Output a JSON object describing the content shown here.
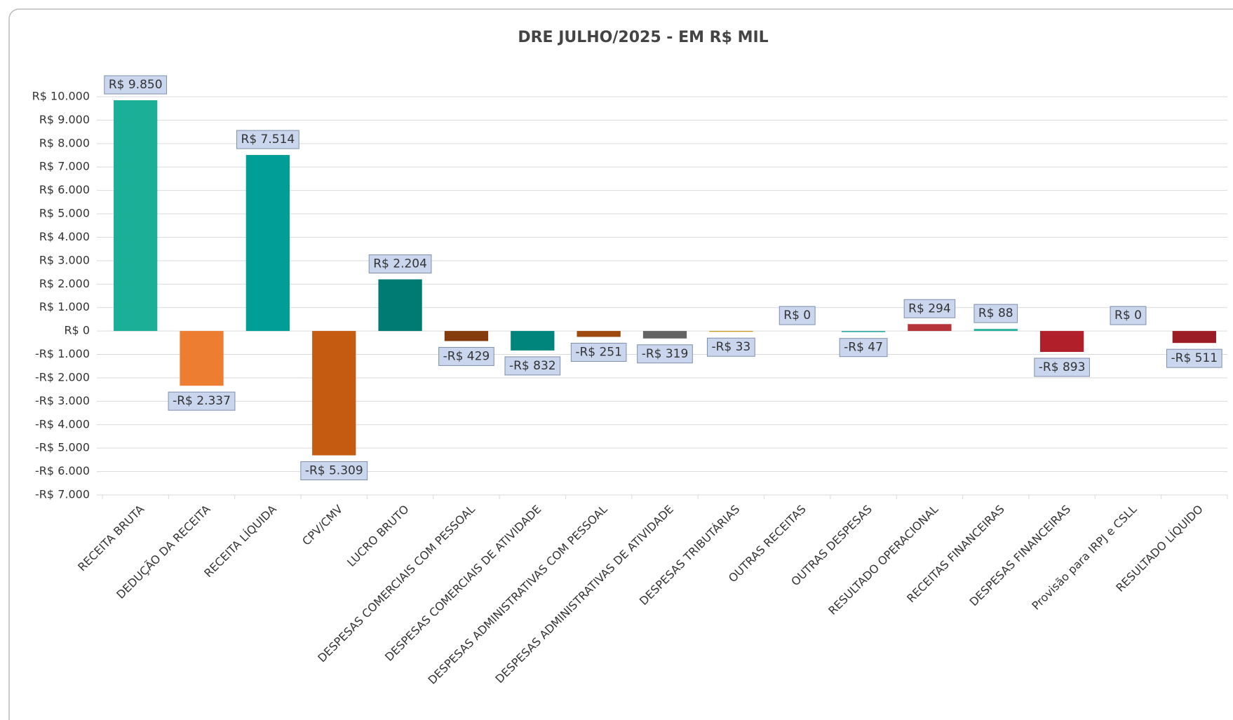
{
  "chart_data": {
    "type": "bar",
    "title": "DRE JULHO/2025 - EM R$ MIL",
    "categories": [
      "RECEITA BRUTA",
      "DEDUÇÃO DA RECEITA",
      "RECEITA LÍQUIDA",
      "CPV/CMV",
      "LUCRO BRUTO",
      "DESPESAS COMERCIAIS COM PESSOAL",
      "DESPESAS COMERCIAIS DE ATIVIDADE",
      "DESPESAS ADMINISTRATIVAS COM PESSOAL",
      "DESPESAS ADMINISTRATIVAS DE ATIVIDADE",
      "DESPESAS TRIBUTÁRIAS",
      "OUTRAS RECEITAS",
      "OUTRAS DESPESAS",
      "RESULTADO OPERACIONAL",
      "RECEITAS FINANCEIRAS",
      "DESPESAS FINANCEIRAS",
      "Provisão para IRPJ e CSLL",
      "RESULTADO LÍQUIDO"
    ],
    "values": [
      9850,
      -2337,
      7514,
      -5309,
      2204,
      -429,
      -832,
      -251,
      -319,
      -33,
      0,
      -47,
      294,
      88,
      -893,
      0,
      -511
    ],
    "value_labels": [
      "R$ 9.850",
      "-R$ 2.337",
      "R$ 7.514",
      "-R$ 5.309",
      "R$ 2.204",
      "-R$ 429",
      "-R$ 832",
      "-R$ 251",
      "-R$ 319",
      "-R$ 33",
      "R$ 0",
      "-R$ 47",
      "R$ 294",
      "R$ 88",
      "-R$ 893",
      "R$ 0",
      "-R$ 511"
    ],
    "colors": [
      "#1aaf96",
      "#ed7d31",
      "#009e96",
      "#c55a11",
      "#007b74",
      "#843c0c",
      "#00857d",
      "#9e480e",
      "#636363",
      "#bf9000",
      "#00a0a0",
      "#26a69a",
      "#b5343a",
      "#26b29b",
      "#b11f2a",
      "#a0202a",
      "#9b1c24"
    ],
    "ylim": [
      -7000,
      10000
    ],
    "yticks": [
      {
        "value": -7000,
        "label": "-R$ 7.000"
      },
      {
        "value": -6000,
        "label": "-R$ 6.000"
      },
      {
        "value": -5000,
        "label": "-R$ 5.000"
      },
      {
        "value": -4000,
        "label": "-R$ 4.000"
      },
      {
        "value": -3000,
        "label": "-R$ 3.000"
      },
      {
        "value": -2000,
        "label": "-R$ 2.000"
      },
      {
        "value": -1000,
        "label": "-R$ 1.000"
      },
      {
        "value": 0,
        "label": "R$ 0"
      },
      {
        "value": 1000,
        "label": "R$ 1.000"
      },
      {
        "value": 2000,
        "label": "R$ 2.000"
      },
      {
        "value": 3000,
        "label": "R$ 3.000"
      },
      {
        "value": 4000,
        "label": "R$ 4.000"
      },
      {
        "value": 5000,
        "label": "R$ 5.000"
      },
      {
        "value": 6000,
        "label": "R$ 6.000"
      },
      {
        "value": 7000,
        "label": "R$ 7.000"
      },
      {
        "value": 8000,
        "label": "R$ 8.000"
      },
      {
        "value": 9000,
        "label": "R$ 9.000"
      },
      {
        "value": 10000,
        "label": "R$ 10.000"
      }
    ],
    "grid": true
  }
}
